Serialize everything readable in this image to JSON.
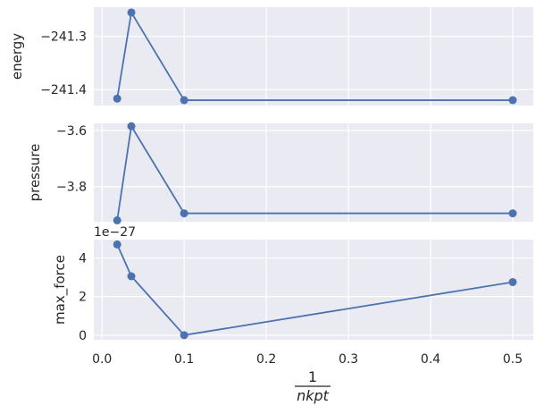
{
  "chart_data": {
    "type": "line",
    "shared_x": [
      0.5,
      0.1,
      0.0357,
      0.0185
    ],
    "xlim": [
      -0.01,
      0.525
    ],
    "xticks": [
      "0.0",
      "0.1",
      "0.2",
      "0.3",
      "0.4",
      "0.5"
    ],
    "xtick_values": [
      0.0,
      0.1,
      0.2,
      0.3,
      0.4,
      0.5
    ],
    "xlabel": {
      "numerator": "1",
      "denominator": "nkpt"
    },
    "grid": true,
    "panels": [
      {
        "ylabel": "energy",
        "y": [
          -241.42,
          -241.42,
          -241.255,
          -241.417
        ],
        "ylim": [
          -241.43,
          -241.245
        ],
        "yticks": [
          "−241.3",
          "−241.4"
        ],
        "ytick_values": [
          -241.3,
          -241.4
        ],
        "offset_text": ""
      },
      {
        "ylabel": "pressure",
        "y": [
          -3.895,
          -3.895,
          -3.585,
          -3.92
        ],
        "ylim": [
          -3.925,
          -3.575
        ],
        "yticks": [
          "−3.6",
          "−3.8"
        ],
        "ytick_values": [
          -3.6,
          -3.8
        ],
        "offset_text": ""
      },
      {
        "ylabel": "max_force",
        "y": [
          2.75,
          0.0,
          3.05,
          4.7
        ],
        "ylim": [
          -0.24,
          4.95
        ],
        "yticks": [
          "0",
          "2",
          "4"
        ],
        "ytick_values": [
          0,
          2,
          4
        ],
        "offset_text": "1e−27"
      }
    ],
    "colors": {
      "line": "#4c72b0",
      "background": "#eaeaf2",
      "grid": "#ffffff"
    }
  }
}
